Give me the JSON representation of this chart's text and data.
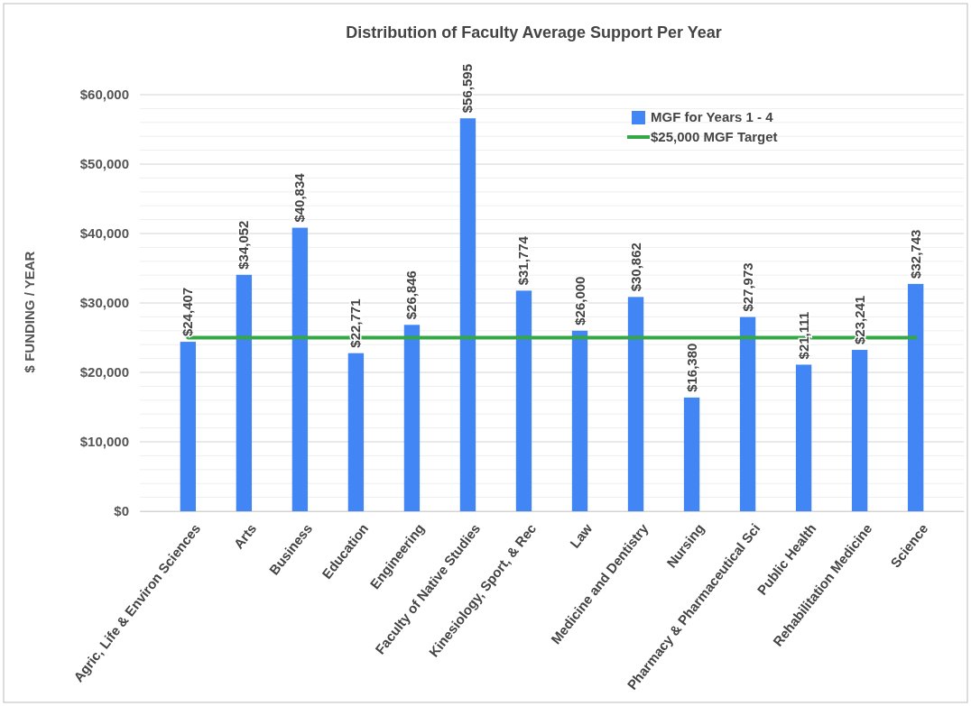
{
  "chart_data": {
    "type": "bar",
    "title": "Distribution of Faculty Average Support Per Year",
    "ylabel": "$ FUNDING / YEAR",
    "categories": [
      "Agric, Life & Environ Sciences",
      "Arts",
      "Business",
      "Education",
      "Engineering",
      "Faculty of Native Studies",
      "Kinesiology, Sport, & Rec",
      "Law",
      "Medicine and Dentistry",
      "Nursing",
      "Pharmacy & Pharmaceutical Sci",
      "Public Health",
      "Rehabilitation Medicine",
      "Science"
    ],
    "series": [
      {
        "name": "MGF for Years 1 - 4",
        "color": "#4285f4",
        "values": [
          24407,
          34052,
          40834,
          22771,
          26846,
          56595,
          31774,
          26000,
          30862,
          16380,
          27973,
          21111,
          23241,
          32743
        ],
        "value_labels": [
          "$24,407",
          "$34,052",
          "$40,834",
          "$22,771",
          "$26,846",
          "$56,595",
          "$31,774",
          "$26,000",
          "$30,862",
          "$16,380",
          "$27,973",
          "$21,111",
          "$23,241",
          "$32,743"
        ]
      },
      {
        "name": "$25,000 MGF Target",
        "type": "line",
        "color": "#34a845",
        "values": [
          25000,
          25000,
          25000,
          25000,
          25000,
          25000,
          25000,
          25000,
          25000,
          25000,
          25000,
          25000,
          25000,
          25000
        ]
      }
    ],
    "ylim": [
      0,
      60000
    ],
    "yticks": [
      {
        "value": 0,
        "label": "$0"
      },
      {
        "value": 2000,
        "label": null
      },
      {
        "value": 4000,
        "label": null
      },
      {
        "value": 6000,
        "label": null
      },
      {
        "value": 8000,
        "label": null
      },
      {
        "value": 10000,
        "label": "$10,000"
      },
      {
        "value": 12000,
        "label": null
      },
      {
        "value": 14000,
        "label": null
      },
      {
        "value": 16000,
        "label": null
      },
      {
        "value": 18000,
        "label": null
      },
      {
        "value": 20000,
        "label": "$20,000"
      },
      {
        "value": 22000,
        "label": null
      },
      {
        "value": 24000,
        "label": null
      },
      {
        "value": 26000,
        "label": null
      },
      {
        "value": 28000,
        "label": null
      },
      {
        "value": 30000,
        "label": "$30,000"
      },
      {
        "value": 32000,
        "label": null
      },
      {
        "value": 34000,
        "label": null
      },
      {
        "value": 36000,
        "label": null
      },
      {
        "value": 38000,
        "label": null
      },
      {
        "value": 40000,
        "label": "$40,000"
      },
      {
        "value": 42000,
        "label": null
      },
      {
        "value": 44000,
        "label": null
      },
      {
        "value": 46000,
        "label": null
      },
      {
        "value": 48000,
        "label": null
      },
      {
        "value": 50000,
        "label": "$50,000"
      },
      {
        "value": 52000,
        "label": null
      },
      {
        "value": 54000,
        "label": null
      },
      {
        "value": 56000,
        "label": null
      },
      {
        "value": 58000,
        "label": null
      },
      {
        "value": 60000,
        "label": "$60,000"
      }
    ],
    "grid": "y",
    "legend": "top right"
  }
}
